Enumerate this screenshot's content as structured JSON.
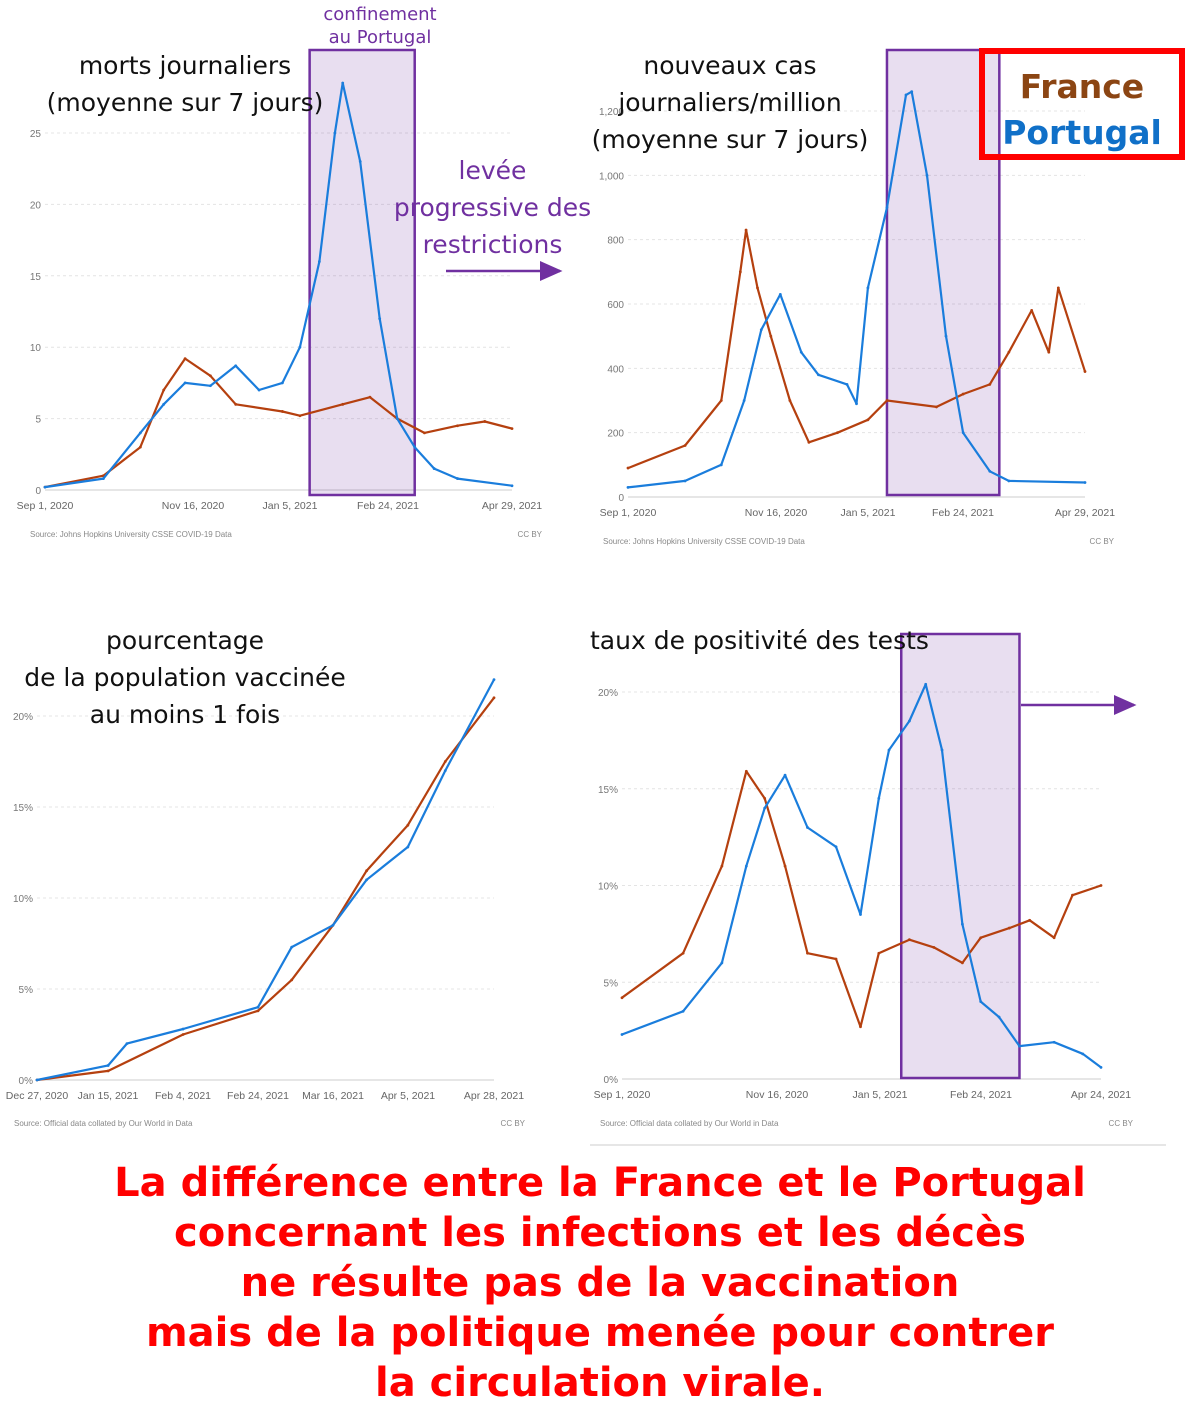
{
  "colors": {
    "france": "#b5400f",
    "portugal": "#1a7ddc",
    "box": "#7030a0",
    "conclusion": "#ff0000"
  },
  "legend": {
    "france": "France",
    "portugal": "Portugal"
  },
  "annotations": {
    "lockdown": [
      "confinement",
      "au Portugal"
    ],
    "lifting": [
      "levée",
      "progressive des",
      "restrictions"
    ]
  },
  "conclusion": [
    "La différence entre la France et le Portugal",
    "concernant les infections et les décès",
    "ne résulte pas de la vaccination",
    "mais de la politique menée pour contrer",
    "la circulation virale."
  ],
  "chart_data": [
    {
      "type": "line",
      "title": [
        "morts journaliers",
        "(moyenne sur 7 jours)"
      ],
      "source": "Source: Johns Hopkins University CSSE COVID-19 Data",
      "license": "CC BY",
      "xticks": [
        "Sep 1, 2020",
        "Nov 16, 2020",
        "Jan 5, 2021",
        "Feb 24, 2021",
        "Apr 29, 2021"
      ],
      "xrange": [
        "2020-09-01",
        "2021-04-29"
      ],
      "yticks": [
        "0",
        "5",
        "10",
        "15",
        "20",
        "25"
      ],
      "ylim": [
        0,
        25
      ],
      "grid": true,
      "highlight": [
        "2021-01-15",
        "2021-03-10"
      ],
      "series": [
        {
          "name": "Portugal",
          "points": [
            [
              "2020-09-01",
              0.2
            ],
            [
              "2020-10-01",
              0.8
            ],
            [
              "2020-10-20",
              4
            ],
            [
              "2020-11-01",
              6
            ],
            [
              "2020-11-12",
              7.5
            ],
            [
              "2020-11-25",
              7.3
            ],
            [
              "2020-12-08",
              8.7
            ],
            [
              "2020-12-20",
              7
            ],
            [
              "2021-01-01",
              7.5
            ],
            [
              "2021-01-10",
              10
            ],
            [
              "2021-01-20",
              16
            ],
            [
              "2021-01-28",
              25
            ],
            [
              "2021-02-01",
              28.5
            ],
            [
              "2021-02-10",
              23
            ],
            [
              "2021-02-20",
              12
            ],
            [
              "2021-03-01",
              5
            ],
            [
              "2021-03-10",
              3
            ],
            [
              "2021-03-20",
              1.5
            ],
            [
              "2021-04-01",
              0.8
            ],
            [
              "2021-04-29",
              0.3
            ]
          ]
        },
        {
          "name": "France",
          "points": [
            [
              "2020-09-01",
              0.2
            ],
            [
              "2020-10-01",
              1
            ],
            [
              "2020-10-20",
              3
            ],
            [
              "2020-11-01",
              7
            ],
            [
              "2020-11-12",
              9.2
            ],
            [
              "2020-11-25",
              8
            ],
            [
              "2020-12-08",
              6
            ],
            [
              "2021-01-01",
              5.5
            ],
            [
              "2021-01-10",
              5.2
            ],
            [
              "2021-02-01",
              6
            ],
            [
              "2021-02-15",
              6.5
            ],
            [
              "2021-03-01",
              5
            ],
            [
              "2021-03-15",
              4
            ],
            [
              "2021-04-01",
              4.5
            ],
            [
              "2021-04-15",
              4.8
            ],
            [
              "2021-04-29",
              4.3
            ]
          ]
        }
      ]
    },
    {
      "type": "line",
      "title": [
        "nouveaux cas",
        "journaliers/million",
        "(moyenne sur 7 jours)"
      ],
      "source": "Source: Johns Hopkins University CSSE COVID-19 Data",
      "license": "CC BY",
      "xticks": [
        "Sep 1, 2020",
        "Nov 16, 2020",
        "Jan 5, 2021",
        "Feb 24, 2021",
        "Apr 29, 2021"
      ],
      "xrange": [
        "2020-09-01",
        "2021-04-29"
      ],
      "yticks": [
        "0",
        "200",
        "400",
        "600",
        "800",
        "1,000",
        "1,200"
      ],
      "ylim": [
        0,
        1200
      ],
      "grid": true,
      "highlight": [
        "2021-01-15",
        "2021-03-15"
      ],
      "series": [
        {
          "name": "Portugal",
          "points": [
            [
              "2020-09-01",
              30
            ],
            [
              "2020-10-01",
              50
            ],
            [
              "2020-10-20",
              100
            ],
            [
              "2020-11-01",
              300
            ],
            [
              "2020-11-10",
              520
            ],
            [
              "2020-11-20",
              630
            ],
            [
              "2020-12-01",
              450
            ],
            [
              "2020-12-10",
              380
            ],
            [
              "2020-12-25",
              350
            ],
            [
              "2020-12-30",
              290
            ],
            [
              "2021-01-05",
              650
            ],
            [
              "2021-01-15",
              900
            ],
            [
              "2021-01-25",
              1250
            ],
            [
              "2021-01-28",
              1260
            ],
            [
              "2021-02-05",
              1000
            ],
            [
              "2021-02-15",
              500
            ],
            [
              "2021-02-24",
              200
            ],
            [
              "2021-03-10",
              80
            ],
            [
              "2021-03-20",
              50
            ],
            [
              "2021-04-29",
              45
            ]
          ]
        },
        {
          "name": "France",
          "points": [
            [
              "2020-09-01",
              90
            ],
            [
              "2020-10-01",
              160
            ],
            [
              "2020-10-20",
              300
            ],
            [
              "2020-10-30",
              700
            ],
            [
              "2020-11-02",
              830
            ],
            [
              "2020-11-08",
              650
            ],
            [
              "2020-11-15",
              500
            ],
            [
              "2020-11-25",
              300
            ],
            [
              "2020-12-05",
              170
            ],
            [
              "2020-12-20",
              200
            ],
            [
              "2021-01-05",
              240
            ],
            [
              "2021-01-15",
              300
            ],
            [
              "2021-02-10",
              280
            ],
            [
              "2021-02-24",
              320
            ],
            [
              "2021-03-10",
              350
            ],
            [
              "2021-03-20",
              450
            ],
            [
              "2021-04-01",
              580
            ],
            [
              "2021-04-10",
              450
            ],
            [
              "2021-04-15",
              650
            ],
            [
              "2021-04-29",
              390
            ]
          ]
        }
      ]
    },
    {
      "type": "line",
      "title": [
        "pourcentage",
        "de la population vaccinée",
        "au moins 1 fois"
      ],
      "source": "Source: Official data collated by Our World in Data",
      "license": "CC BY",
      "xticks": [
        "Dec 27, 2020",
        "Jan 15, 2021",
        "Feb 4, 2021",
        "Feb 24, 2021",
        "Mar 16, 2021",
        "Apr 5, 2021",
        "Apr 28, 2021"
      ],
      "xrange": [
        "2020-12-27",
        "2021-04-28"
      ],
      "yticks": [
        "0%",
        "5%",
        "10%",
        "15%",
        "20%"
      ],
      "ylim": [
        0,
        20
      ],
      "grid": true,
      "series": [
        {
          "name": "Portugal",
          "points": [
            [
              "2020-12-27",
              0
            ],
            [
              "2021-01-15",
              0.8
            ],
            [
              "2021-01-20",
              2
            ],
            [
              "2021-02-04",
              2.8
            ],
            [
              "2021-02-24",
              4
            ],
            [
              "2021-03-05",
              7.3
            ],
            [
              "2021-03-16",
              8.5
            ],
            [
              "2021-03-25",
              11
            ],
            [
              "2021-04-05",
              12.8
            ],
            [
              "2021-04-15",
              17
            ],
            [
              "2021-04-28",
              22
            ]
          ]
        },
        {
          "name": "France",
          "points": [
            [
              "2020-12-27",
              0
            ],
            [
              "2021-01-15",
              0.5
            ],
            [
              "2021-02-04",
              2.5
            ],
            [
              "2021-02-24",
              3.8
            ],
            [
              "2021-03-05",
              5.5
            ],
            [
              "2021-03-16",
              8.5
            ],
            [
              "2021-03-25",
              11.5
            ],
            [
              "2021-04-05",
              14
            ],
            [
              "2021-04-15",
              17.5
            ],
            [
              "2021-04-28",
              21
            ]
          ]
        }
      ]
    },
    {
      "type": "line",
      "title": [
        "taux de positivité des tests"
      ],
      "source": "Source: Official data collated by Our World in Data",
      "license": "CC BY",
      "xticks": [
        "Sep 1, 2020",
        "Nov 16, 2020",
        "Jan 5, 2021",
        "Feb 24, 2021",
        "Apr 24, 2021"
      ],
      "xrange": [
        "2020-09-01",
        "2021-04-24"
      ],
      "yticks": [
        "0%",
        "5%",
        "10%",
        "15%",
        "20%"
      ],
      "ylim": [
        0,
        20
      ],
      "grid": true,
      "highlight": [
        "2021-01-16",
        "2021-03-15"
      ],
      "series": [
        {
          "name": "Portugal",
          "points": [
            [
              "2020-09-01",
              2.3
            ],
            [
              "2020-10-01",
              3.5
            ],
            [
              "2020-10-20",
              6
            ],
            [
              "2020-11-01",
              11
            ],
            [
              "2020-11-10",
              14
            ],
            [
              "2020-11-20",
              15.7
            ],
            [
              "2020-12-01",
              13
            ],
            [
              "2020-12-15",
              12
            ],
            [
              "2020-12-27",
              8.5
            ],
            [
              "2021-01-05",
              14.5
            ],
            [
              "2021-01-10",
              17
            ],
            [
              "2021-01-20",
              18.5
            ],
            [
              "2021-01-28",
              20.4
            ],
            [
              "2021-02-05",
              17
            ],
            [
              "2021-02-15",
              8
            ],
            [
              "2021-02-24",
              4
            ],
            [
              "2021-03-05",
              3.2
            ],
            [
              "2021-03-15",
              1.7
            ],
            [
              "2021-04-01",
              1.9
            ],
            [
              "2021-04-15",
              1.3
            ],
            [
              "2021-04-24",
              0.6
            ]
          ]
        },
        {
          "name": "France",
          "points": [
            [
              "2020-09-01",
              4.2
            ],
            [
              "2020-10-01",
              6.5
            ],
            [
              "2020-10-20",
              11
            ],
            [
              "2020-11-01",
              15.9
            ],
            [
              "2020-11-10",
              14.5
            ],
            [
              "2020-11-20",
              11
            ],
            [
              "2020-12-01",
              6.5
            ],
            [
              "2020-12-15",
              6.2
            ],
            [
              "2020-12-27",
              2.7
            ],
            [
              "2021-01-05",
              6.5
            ],
            [
              "2021-01-20",
              7.2
            ],
            [
              "2021-02-01",
              6.8
            ],
            [
              "2021-02-15",
              6
            ],
            [
              "2021-02-24",
              7.3
            ],
            [
              "2021-03-10",
              7.8
            ],
            [
              "2021-03-20",
              8.2
            ],
            [
              "2021-04-01",
              7.3
            ],
            [
              "2021-04-10",
              9.5
            ],
            [
              "2021-04-24",
              10
            ]
          ]
        }
      ]
    }
  ]
}
